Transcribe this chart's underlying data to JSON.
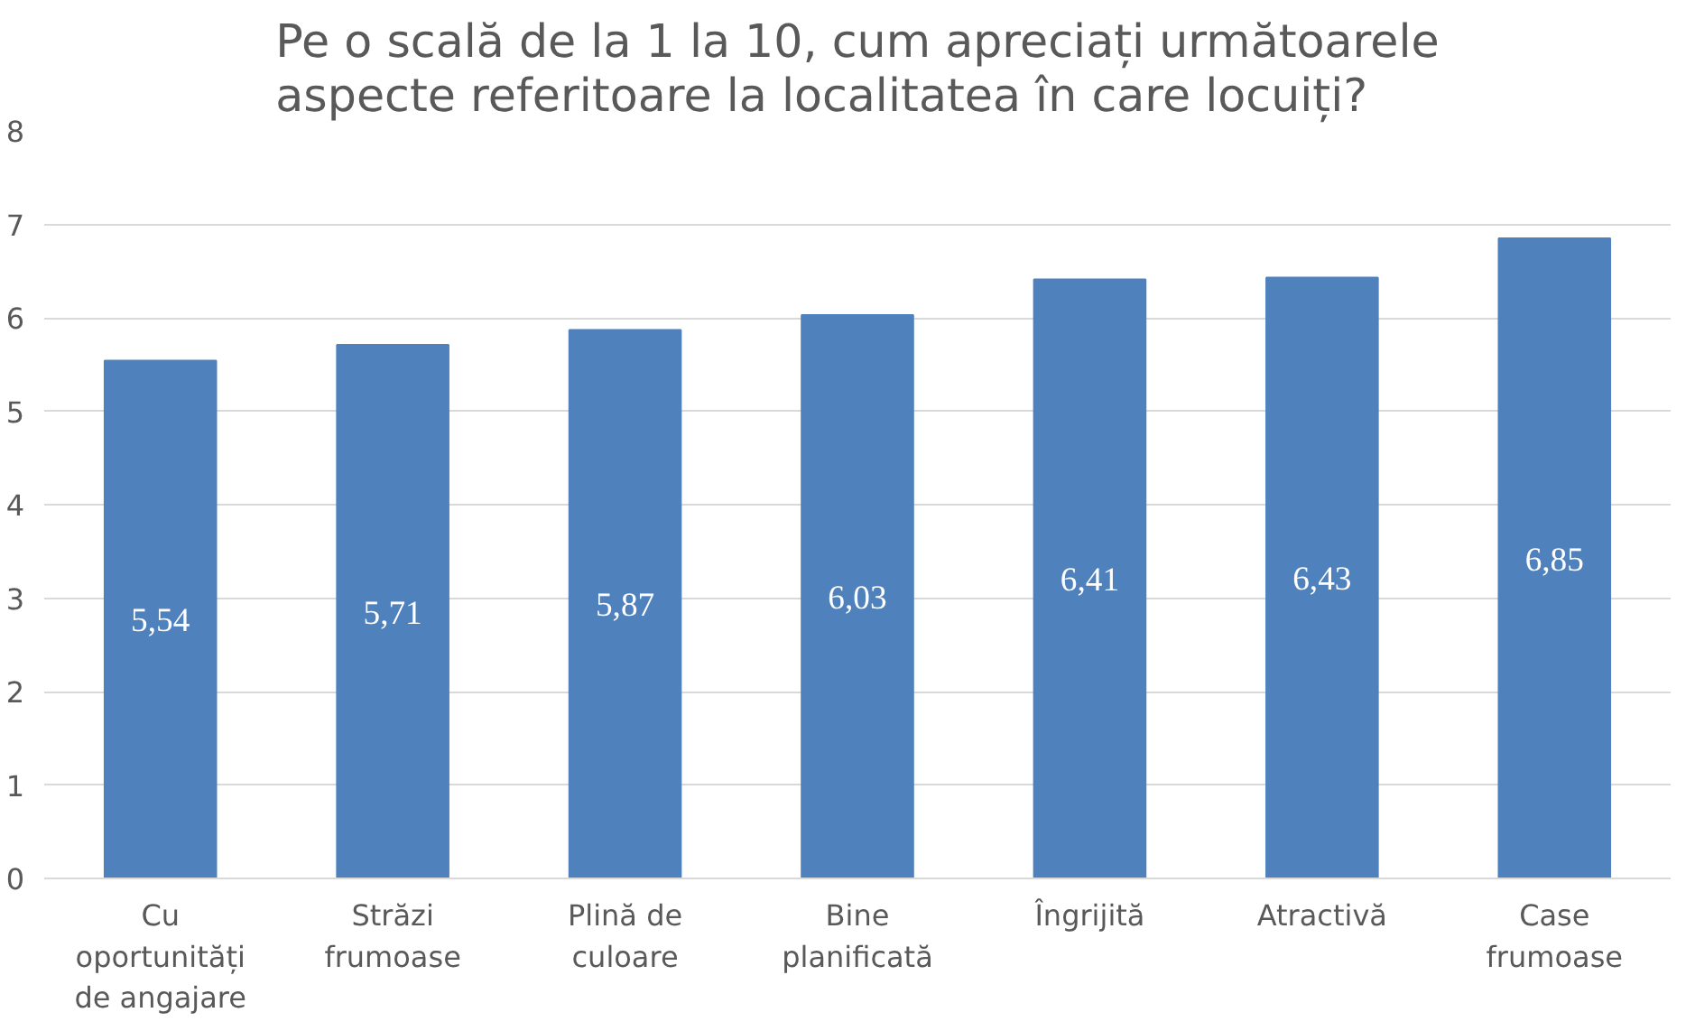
{
  "chart_data": {
    "type": "bar",
    "title": "Pe o scală de la 1 la 10, cum apreciați următoarele aspecte referitoare la localitatea în care locuiți?",
    "categories": [
      "Cu oportunități de angajare",
      "Străzi frumoase",
      "Plină de culoare",
      "Bine planificată",
      "Îngrijită",
      "Atractivă",
      "Case frumoase"
    ],
    "values": [
      5.54,
      5.71,
      5.87,
      6.03,
      6.41,
      6.43,
      6.85
    ],
    "value_labels": [
      "5,54",
      "5,71",
      "5,87",
      "6,03",
      "6,41",
      "6,43",
      "6,85"
    ],
    "color": "#4f81bd",
    "ylim": [
      0,
      8
    ],
    "yticks": [
      0,
      1,
      2,
      3,
      4,
      5,
      6,
      7,
      8
    ],
    "grid": "y"
  }
}
